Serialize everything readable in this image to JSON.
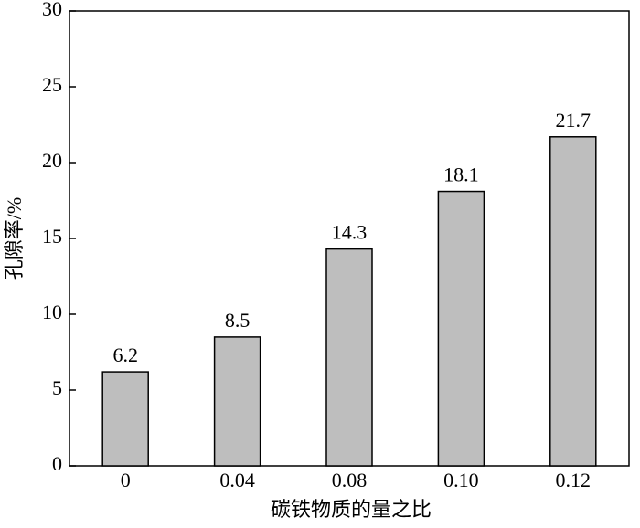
{
  "chart_data": {
    "type": "bar",
    "categories": [
      "0",
      "0.04",
      "0.08",
      "0.10",
      "0.12"
    ],
    "values": [
      6.2,
      8.5,
      14.3,
      18.1,
      21.7
    ],
    "color": "#bebebe",
    "ylim": [
      0,
      30
    ],
    "yticks": [
      0,
      5,
      10,
      15,
      20,
      25,
      30
    ],
    "ylabel": "孔隙率/%",
    "xlabel": "碳铁物质的量之比",
    "show_value_labels": true
  }
}
